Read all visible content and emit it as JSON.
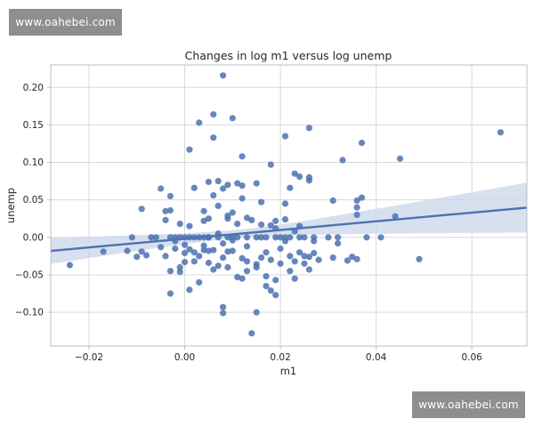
{
  "watermarks": {
    "top": "www.oahebei.com",
    "bottom": "www.oahebei.com"
  },
  "colors": {
    "point": "#4c72b0",
    "line": "#4c72b0",
    "band": "#c9d6ea",
    "grid": "#d9d9d9",
    "axis": "#bfbfbf",
    "text": "#262626"
  },
  "chart_data": {
    "type": "scatter",
    "title": "Changes in log m1 versus log unemp",
    "xlabel": "m1",
    "ylabel": "unemp",
    "xlim": [
      -0.028,
      0.0715
    ],
    "ylim": [
      -0.145,
      0.23
    ],
    "xticks": [
      -0.02,
      0.0,
      0.02,
      0.04,
      0.06
    ],
    "xtick_labels": [
      "−0.02",
      "0.00",
      "0.02",
      "0.04",
      "0.06"
    ],
    "yticks": [
      -0.1,
      -0.05,
      0.0,
      0.05,
      0.1,
      0.15,
      0.2
    ],
    "ytick_labels": [
      "−0.10",
      "−0.05",
      "0.00",
      "0.05",
      "0.10",
      "0.15",
      "0.20"
    ],
    "grid": true,
    "regression": {
      "intercept": -0.0018,
      "slope": 0.58,
      "ci_lower_at_xmin": -0.035,
      "ci_upper_at_xmin": 0.0,
      "ci_lower_at_xmax": 0.0065,
      "ci_upper_at_xmax": 0.073
    },
    "points": [
      [
        -0.024,
        -0.037
      ],
      [
        -0.017,
        -0.019
      ],
      [
        -0.012,
        -0.018
      ],
      [
        -0.011,
        0.0
      ],
      [
        -0.01,
        -0.026
      ],
      [
        -0.009,
        -0.019
      ],
      [
        -0.009,
        0.038
      ],
      [
        -0.008,
        -0.024
      ],
      [
        -0.007,
        0.0
      ],
      [
        -0.006,
        0.0
      ],
      [
        -0.005,
        -0.013
      ],
      [
        -0.005,
        0.065
      ],
      [
        -0.004,
        0.023
      ],
      [
        -0.004,
        -0.025
      ],
      [
        -0.004,
        0.035
      ],
      [
        -0.003,
        0.0
      ],
      [
        -0.003,
        0.055
      ],
      [
        -0.003,
        -0.045
      ],
      [
        -0.003,
        -0.075
      ],
      [
        -0.003,
        0.036
      ],
      [
        -0.002,
        0.0
      ],
      [
        -0.002,
        -0.015
      ],
      [
        -0.002,
        -0.005
      ],
      [
        -0.001,
        0.0
      ],
      [
        -0.001,
        -0.04
      ],
      [
        -0.001,
        0.018
      ],
      [
        -0.001,
        -0.046
      ],
      [
        0.0,
        -0.033
      ],
      [
        0.0,
        -0.021
      ],
      [
        0.0,
        0.0
      ],
      [
        0.0,
        -0.01
      ],
      [
        0.001,
        -0.07
      ],
      [
        0.001,
        -0.016
      ],
      [
        0.001,
        0.0
      ],
      [
        0.001,
        0.117
      ],
      [
        0.001,
        0.015
      ],
      [
        0.002,
        -0.02
      ],
      [
        0.002,
        0.0
      ],
      [
        0.002,
        -0.032
      ],
      [
        0.002,
        0.066
      ],
      [
        0.003,
        0.153
      ],
      [
        0.003,
        -0.06
      ],
      [
        0.003,
        0.0
      ],
      [
        0.003,
        -0.025
      ],
      [
        0.004,
        0.0
      ],
      [
        0.004,
        -0.011
      ],
      [
        0.004,
        0.022
      ],
      [
        0.004,
        -0.017
      ],
      [
        0.004,
        0.035
      ],
      [
        0.005,
        0.0
      ],
      [
        0.005,
        -0.018
      ],
      [
        0.005,
        -0.034
      ],
      [
        0.005,
        0.025
      ],
      [
        0.005,
        0.074
      ],
      [
        0.005,
        0.0
      ],
      [
        0.006,
        0.164
      ],
      [
        0.006,
        0.133
      ],
      [
        0.006,
        -0.043
      ],
      [
        0.006,
        -0.017
      ],
      [
        0.006,
        0.056
      ],
      [
        0.007,
        0.0
      ],
      [
        0.007,
        -0.038
      ],
      [
        0.007,
        0.075
      ],
      [
        0.007,
        0.042
      ],
      [
        0.007,
        0.005
      ],
      [
        0.008,
        -0.093
      ],
      [
        0.008,
        -0.008
      ],
      [
        0.008,
        0.065
      ],
      [
        0.008,
        -0.027
      ],
      [
        0.008,
        0.216
      ],
      [
        0.008,
        -0.101
      ],
      [
        0.009,
        0.0
      ],
      [
        0.009,
        0.029
      ],
      [
        0.009,
        -0.019
      ],
      [
        0.009,
        0.07
      ],
      [
        0.009,
        -0.04
      ],
      [
        0.009,
        0.025
      ],
      [
        0.01,
        0.159
      ],
      [
        0.01,
        -0.004
      ],
      [
        0.01,
        0.033
      ],
      [
        0.01,
        -0.018
      ],
      [
        0.01,
        0.0
      ],
      [
        0.011,
        0.072
      ],
      [
        0.011,
        -0.053
      ],
      [
        0.011,
        0.018
      ],
      [
        0.011,
        0.0
      ],
      [
        0.012,
        0.108
      ],
      [
        0.012,
        -0.028
      ],
      [
        0.012,
        0.052
      ],
      [
        0.012,
        0.069
      ],
      [
        0.012,
        -0.055
      ],
      [
        0.013,
        0.026
      ],
      [
        0.013,
        -0.012
      ],
      [
        0.013,
        0.0
      ],
      [
        0.013,
        -0.045
      ],
      [
        0.013,
        -0.032
      ],
      [
        0.014,
        -0.128
      ],
      [
        0.014,
        0.023
      ],
      [
        0.015,
        -0.1
      ],
      [
        0.015,
        0.0
      ],
      [
        0.015,
        -0.036
      ],
      [
        0.015,
        0.072
      ],
      [
        0.015,
        -0.04
      ],
      [
        0.016,
        0.017
      ],
      [
        0.016,
        0.0
      ],
      [
        0.016,
        -0.027
      ],
      [
        0.016,
        0.047
      ],
      [
        0.017,
        -0.052
      ],
      [
        0.017,
        -0.02
      ],
      [
        0.017,
        -0.065
      ],
      [
        0.017,
        0.0
      ],
      [
        0.018,
        0.097
      ],
      [
        0.018,
        -0.03
      ],
      [
        0.018,
        -0.071
      ],
      [
        0.018,
        0.016
      ],
      [
        0.019,
        0.0
      ],
      [
        0.019,
        -0.077
      ],
      [
        0.019,
        0.022
      ],
      [
        0.019,
        -0.057
      ],
      [
        0.019,
        0.012
      ],
      [
        0.02,
        -0.015
      ],
      [
        0.02,
        0.0
      ],
      [
        0.02,
        -0.035
      ],
      [
        0.021,
        0.135
      ],
      [
        0.021,
        0.024
      ],
      [
        0.021,
        0.0
      ],
      [
        0.021,
        -0.005
      ],
      [
        0.021,
        0.045
      ],
      [
        0.022,
        -0.025
      ],
      [
        0.022,
        0.0
      ],
      [
        0.022,
        -0.045
      ],
      [
        0.022,
        0.066
      ],
      [
        0.023,
        0.008
      ],
      [
        0.023,
        0.085
      ],
      [
        0.023,
        -0.032
      ],
      [
        0.023,
        -0.055
      ],
      [
        0.024,
        0.081
      ],
      [
        0.024,
        0.0
      ],
      [
        0.024,
        -0.02
      ],
      [
        0.024,
        0.015
      ],
      [
        0.025,
        -0.035
      ],
      [
        0.025,
        -0.025
      ],
      [
        0.025,
        0.0
      ],
      [
        0.026,
        0.146
      ],
      [
        0.026,
        0.08
      ],
      [
        0.026,
        -0.026
      ],
      [
        0.026,
        0.076
      ],
      [
        0.026,
        -0.043
      ],
      [
        0.027,
        -0.005
      ],
      [
        0.027,
        -0.021
      ],
      [
        0.027,
        0.0
      ],
      [
        0.028,
        -0.03
      ],
      [
        0.03,
        0.0
      ],
      [
        0.031,
        0.049
      ],
      [
        0.031,
        -0.027
      ],
      [
        0.032,
        0.0
      ],
      [
        0.032,
        -0.008
      ],
      [
        0.033,
        0.103
      ],
      [
        0.034,
        -0.031
      ],
      [
        0.035,
        -0.026
      ],
      [
        0.036,
        0.04
      ],
      [
        0.036,
        0.049
      ],
      [
        0.036,
        0.03
      ],
      [
        0.036,
        -0.029
      ],
      [
        0.037,
        0.053
      ],
      [
        0.037,
        0.126
      ],
      [
        0.038,
        0.0
      ],
      [
        0.041,
        0.0
      ],
      [
        0.044,
        0.028
      ],
      [
        0.045,
        0.105
      ],
      [
        0.049,
        -0.029
      ],
      [
        0.066,
        0.14
      ]
    ]
  }
}
